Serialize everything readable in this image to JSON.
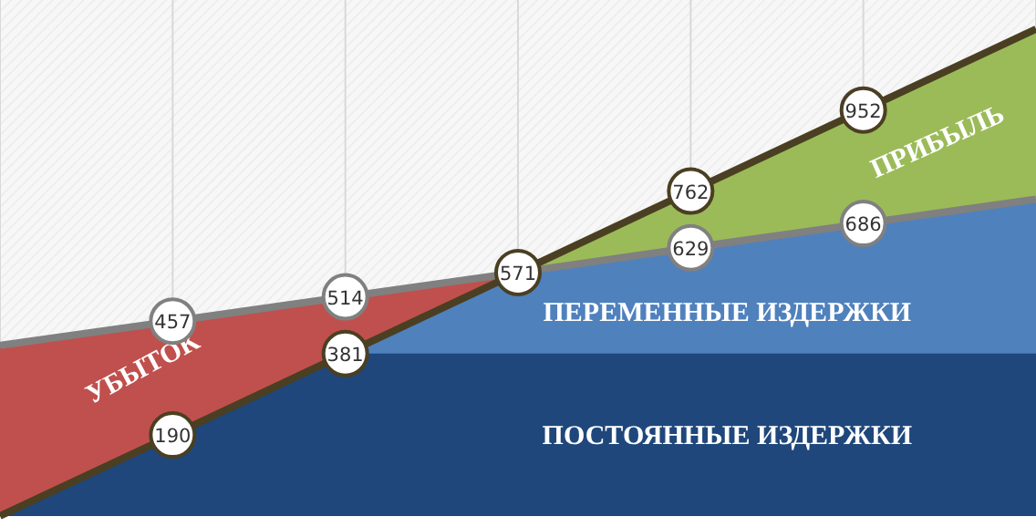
{
  "chart_data": {
    "type": "line",
    "categories": [
      null,
      null,
      null,
      null,
      null,
      null,
      null
    ],
    "ylim": [
      0,
      1210
    ],
    "grid": "x",
    "annotations": [
      "УБЫТОК",
      "ПРИБЫЛЬ"
    ],
    "bands": [
      {
        "axis": "y",
        "from": 0,
        "to": 381,
        "label": "ПОСТОЯННЫЕ ИЗДЕРЖКИ",
        "color": "#1f477b"
      }
    ],
    "series": [
      {
        "name": "ПЕРЕМЕННЫЕ ИЗДЕРЖКИ",
        "type": "area",
        "color": "#4f81bd",
        "marker": "circle",
        "values": [
          400,
          457,
          514,
          571,
          629,
          686,
          743
        ],
        "value_labels": [
          null,
          "457",
          "514",
          null,
          "629",
          "686",
          null
        ]
      },
      {
        "color": "#4a3f22",
        "marker": "circle",
        "values": [
          0,
          190,
          381,
          571,
          762,
          952,
          1142
        ],
        "value_labels": [
          null,
          "190",
          "381",
          "571",
          "762",
          "952",
          null
        ]
      }
    ]
  }
}
